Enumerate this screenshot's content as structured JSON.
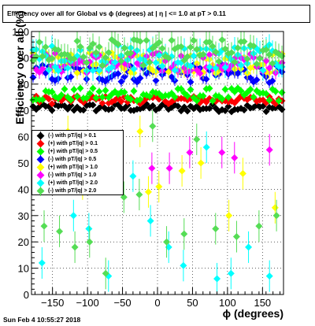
{
  "title": "Efficiency over all for Global vs ϕ (degrees) at | η | <= 1.0 at pT > 0.11",
  "datestamp": "Sun Feb  4 10:55:27 2018",
  "chart_data": {
    "type": "scatter",
    "title": "Efficiency over all for Global vs ϕ (degrees) at | η | <= 1.0 at pT > 0.11",
    "xlabel": "ϕ (degrees)",
    "ylabel": "Efficiency over all (%)",
    "xlim": [
      -180,
      180
    ],
    "ylim": [
      0,
      100
    ],
    "xticks": [
      -150,
      -100,
      -50,
      0,
      50,
      100,
      150
    ],
    "yticks": [
      0,
      10,
      20,
      30,
      40,
      50,
      60,
      70,
      80,
      90,
      100
    ],
    "grid": true,
    "legend_position": "middle-left",
    "bin_width_degrees": 4.5,
    "series": [
      {
        "name": "(-) with pT/|q| > 0.1",
        "color": "#000000",
        "base": 71,
        "spread": 1.5,
        "err": 1.2,
        "outliers": []
      },
      {
        "name": "(+) with pT/|q| > 0.1",
        "color": "#ff0000",
        "base": 74,
        "spread": 1.5,
        "err": 1.2,
        "outliers": []
      },
      {
        "name": "(+) with pT/|q| > 0.5",
        "color": "#00ff00",
        "base": 76,
        "spread": 2.5,
        "err": 1.5,
        "outliers": []
      },
      {
        "name": "(-) with pT/|q| > 0.5",
        "color": "#0000ff",
        "base": 84,
        "spread": 3.5,
        "err": 2,
        "outliers": []
      },
      {
        "name": "(+) with pT/|q| > 1.0",
        "color": "#ffff00",
        "base": 88,
        "spread": 4,
        "err": 2.5,
        "outliers": [
          [
            -128,
            62
          ],
          [
            -107,
            42
          ],
          [
            -25,
            62
          ],
          [
            -13,
            39
          ],
          [
            2,
            41
          ],
          [
            35,
            47
          ],
          [
            62,
            50
          ],
          [
            102,
            30
          ],
          [
            122,
            46
          ],
          [
            168,
            33
          ]
        ]
      },
      {
        "name": "(-) with pT/|q| > 1.0",
        "color": "#ff00ff",
        "base": 88,
        "spread": 4,
        "err": 2.5,
        "outliers": [
          [
            -8,
            48
          ],
          [
            17,
            48
          ],
          [
            46,
            54
          ],
          [
            92,
            54
          ],
          [
            110,
            52
          ],
          [
            160,
            55
          ]
        ]
      },
      {
        "name": "(+) with pT/|q| > 2.0",
        "color": "#00ffff",
        "base": 90,
        "spread": 5,
        "err": 4,
        "outliers": [
          [
            -165,
            12
          ],
          [
            -120,
            30
          ],
          [
            -98,
            25
          ],
          [
            -70,
            7
          ],
          [
            -35,
            45
          ],
          [
            -10,
            28
          ],
          [
            16,
            18
          ],
          [
            37,
            11
          ],
          [
            70,
            56
          ],
          [
            85,
            6
          ],
          [
            105,
            8
          ],
          [
            130,
            18
          ],
          [
            160,
            7
          ]
        ]
      },
      {
        "name": "(-) with pT/|q| > 2.0",
        "color": "#55dd55",
        "base": 92,
        "spread": 5,
        "err": 4,
        "outliers": [
          [
            -162,
            26
          ],
          [
            -140,
            24
          ],
          [
            -118,
            18
          ],
          [
            -97,
            20
          ],
          [
            -74,
            8
          ],
          [
            -48,
            37
          ],
          [
            -26,
            38
          ],
          [
            -7,
            64
          ],
          [
            13,
            20
          ],
          [
            38,
            23
          ],
          [
            56,
            59
          ],
          [
            83,
            25
          ],
          [
            113,
            22
          ],
          [
            145,
            26
          ],
          [
            170,
            30
          ]
        ]
      }
    ]
  }
}
